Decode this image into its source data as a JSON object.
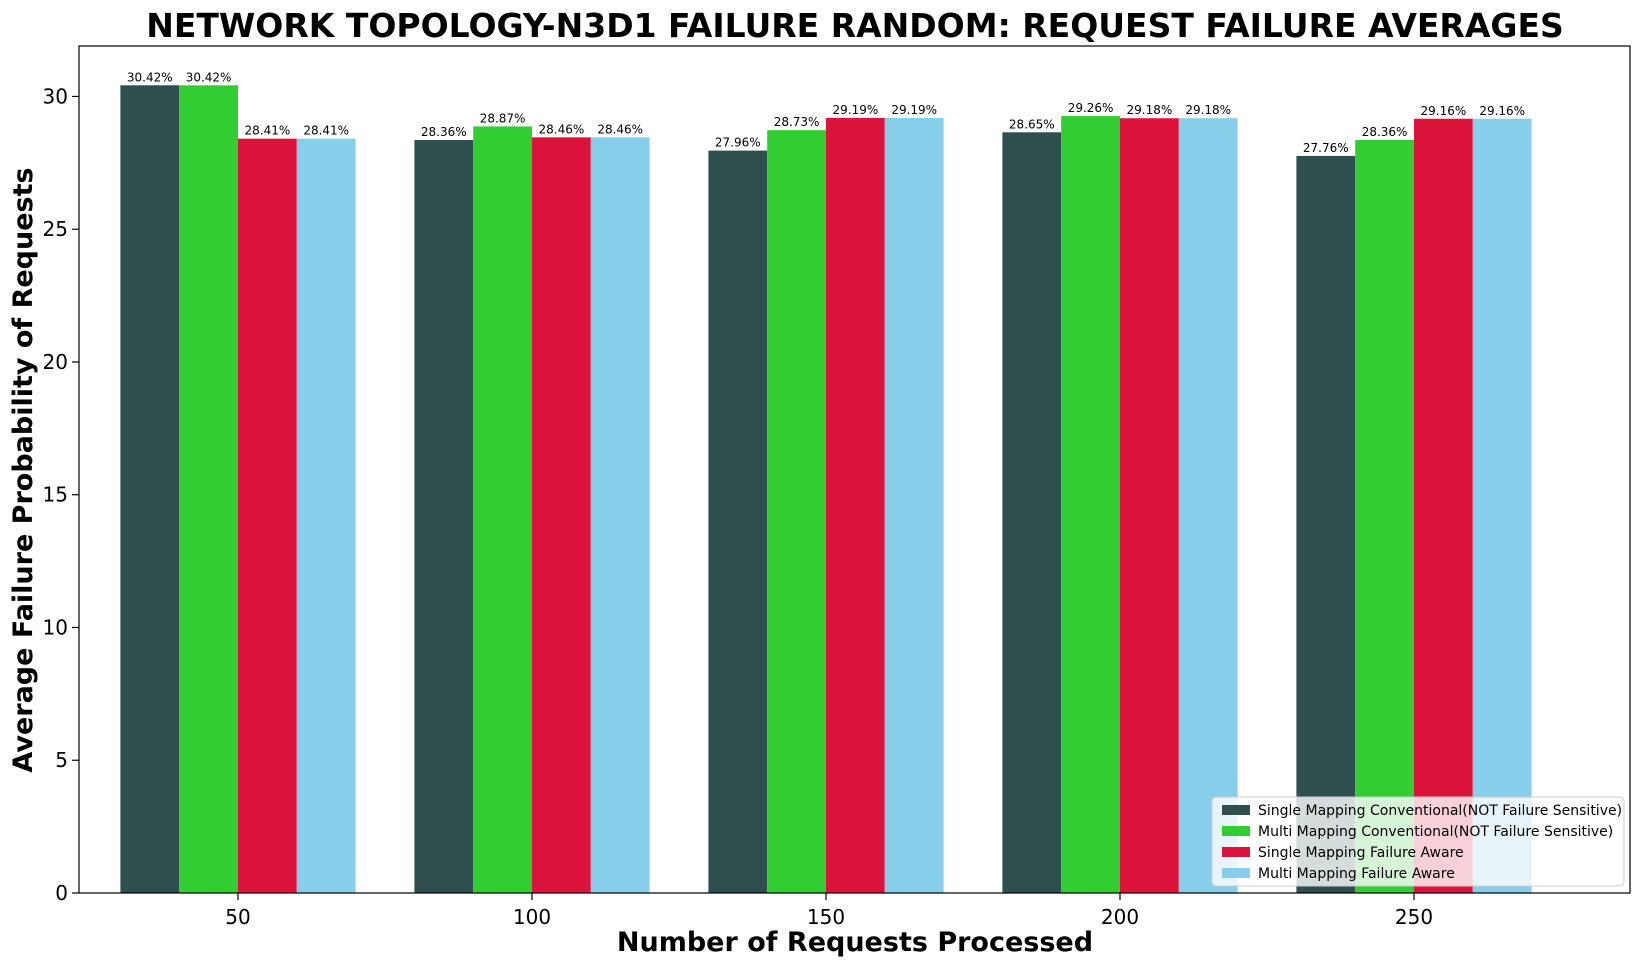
{
  "chart_data": {
    "type": "bar",
    "title": "NETWORK TOPOLOGY-N3D1 FAILURE RANDOM: REQUEST FAILURE AVERAGES",
    "xlabel": "Number of Requests Processed",
    "ylabel": "Average Failure Probability of Requests",
    "categories": [
      "50",
      "100",
      "150",
      "200",
      "250"
    ],
    "ylim": [
      0,
      31.9
    ],
    "yticks": [
      0,
      5,
      10,
      15,
      20,
      25,
      30
    ],
    "grid": false,
    "legend_position": "bottom-right",
    "series": [
      {
        "name": "Single Mapping Conventional(NOT Failure Sensitive)",
        "color": "#2f4f4f",
        "values": [
          30.42,
          28.36,
          27.96,
          28.65,
          27.76
        ],
        "labels": [
          "30.42%",
          "28.36%",
          "27.96%",
          "28.65%",
          "27.76%"
        ]
      },
      {
        "name": "Multi Mapping Conventional(NOT Failure Sensitive)",
        "color": "#32cd32",
        "values": [
          30.42,
          28.87,
          28.73,
          29.26,
          28.36
        ],
        "labels": [
          "30.42%",
          "28.87%",
          "28.73%",
          "29.26%",
          "28.36%"
        ]
      },
      {
        "name": "Single Mapping Failure Aware",
        "color": "#dc143c",
        "values": [
          28.41,
          28.46,
          29.19,
          29.18,
          29.16
        ],
        "labels": [
          "28.41%",
          "28.46%",
          "29.19%",
          "29.18%",
          "29.16%"
        ]
      },
      {
        "name": "Multi Mapping Failure Aware",
        "color": "#87ceeb",
        "values": [
          28.41,
          28.46,
          29.19,
          29.18,
          29.16
        ],
        "labels": [
          "28.41%",
          "28.46%",
          "29.19%",
          "29.18%",
          "29.16%"
        ]
      }
    ]
  }
}
